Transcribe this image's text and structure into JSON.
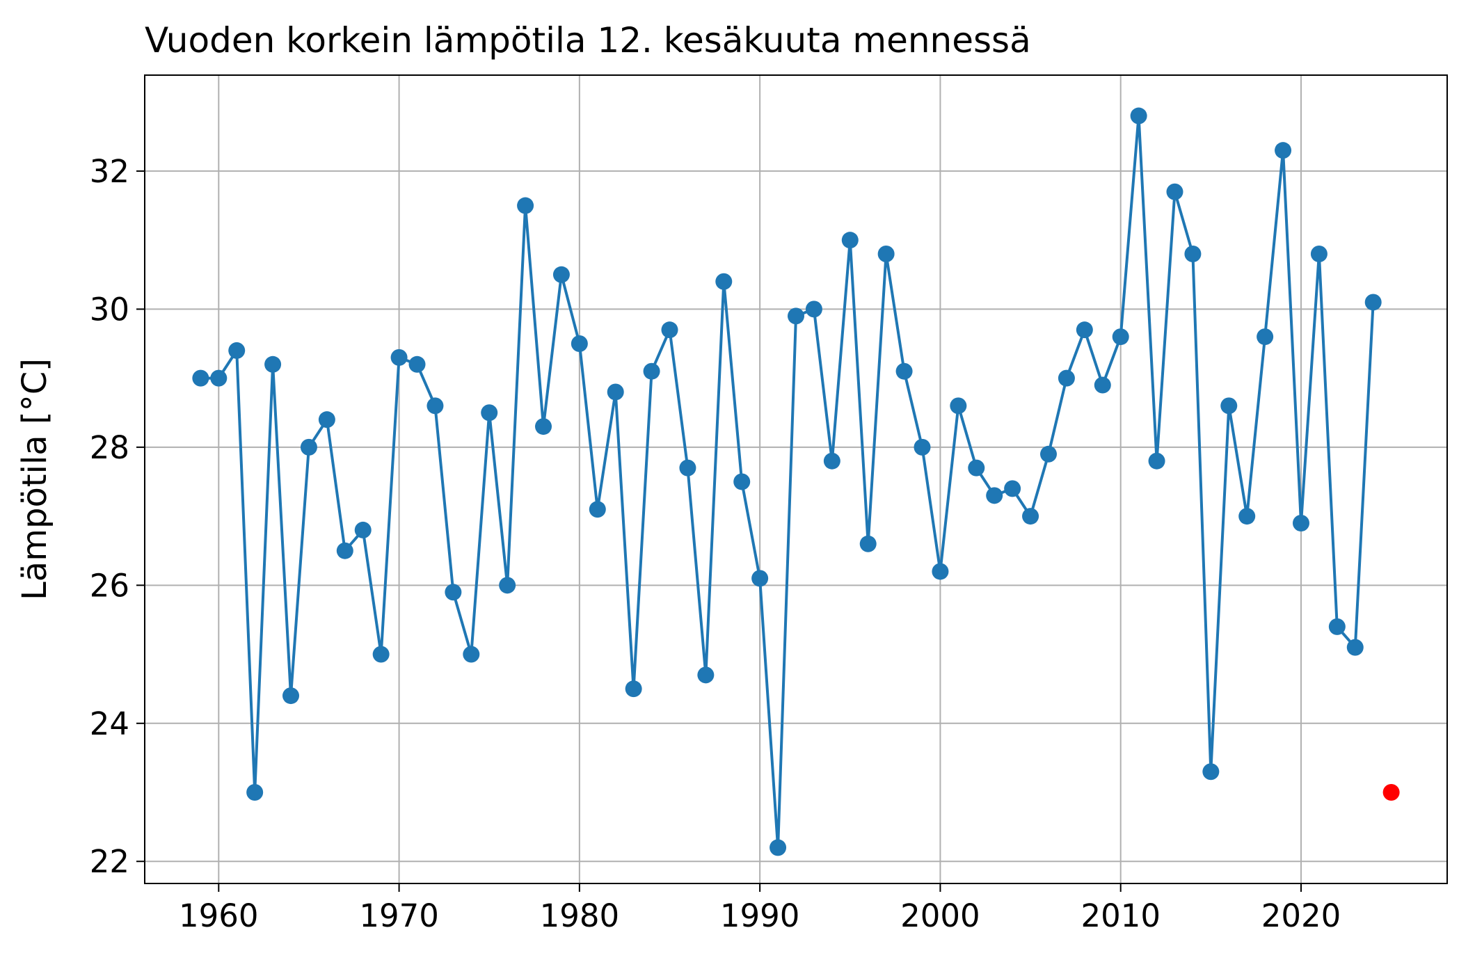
{
  "chart_data": {
    "type": "line",
    "title": "Vuoden korkein lämpötila 12. kesäkuuta mennessä",
    "xlabel": "",
    "ylabel": "Lämpötila [°C]",
    "xlim": [
      1955.9,
      2028.1
    ],
    "ylim": [
      21.68,
      33.39
    ],
    "xticks": [
      1960,
      1970,
      1980,
      1990,
      2000,
      2010,
      2020
    ],
    "yticks": [
      22,
      24,
      26,
      28,
      30,
      32
    ],
    "grid": true,
    "series": [
      {
        "color": "#1f77b4",
        "marker": "circle",
        "x": [
          1959,
          1960,
          1961,
          1962,
          1963,
          1964,
          1965,
          1966,
          1967,
          1968,
          1969,
          1970,
          1971,
          1972,
          1973,
          1974,
          1975,
          1976,
          1977,
          1978,
          1979,
          1980,
          1981,
          1982,
          1983,
          1984,
          1985,
          1986,
          1987,
          1988,
          1989,
          1990,
          1991,
          1992,
          1993,
          1994,
          1995,
          1996,
          1997,
          1998,
          1999,
          2000,
          2001,
          2002,
          2003,
          2004,
          2005,
          2006,
          2007,
          2008,
          2009,
          2010,
          2011,
          2012,
          2013,
          2014,
          2015,
          2016,
          2017,
          2018,
          2019,
          2020,
          2021,
          2022,
          2023,
          2024
        ],
        "y": [
          29.0,
          29.0,
          29.4,
          23.0,
          29.2,
          24.4,
          28.0,
          28.4,
          26.5,
          26.8,
          25.0,
          29.3,
          29.2,
          28.6,
          25.9,
          25.0,
          28.5,
          26.0,
          31.5,
          28.3,
          30.5,
          29.5,
          27.1,
          28.8,
          24.5,
          29.1,
          29.7,
          27.7,
          24.7,
          30.4,
          27.5,
          26.1,
          22.2,
          29.9,
          30.0,
          27.8,
          31.0,
          26.6,
          30.8,
          29.1,
          28.0,
          26.2,
          28.6,
          27.7,
          27.3,
          27.4,
          27.0,
          27.9,
          29.0,
          29.7,
          28.9,
          29.6,
          32.8,
          27.8,
          31.7,
          30.8,
          23.3,
          28.6,
          27.0,
          29.6,
          32.3,
          26.9,
          30.8,
          25.4,
          25.1,
          30.1
        ]
      },
      {
        "color": "#ff0000",
        "marker": "circle",
        "x": [
          2025
        ],
        "y": [
          23.0
        ]
      }
    ]
  }
}
